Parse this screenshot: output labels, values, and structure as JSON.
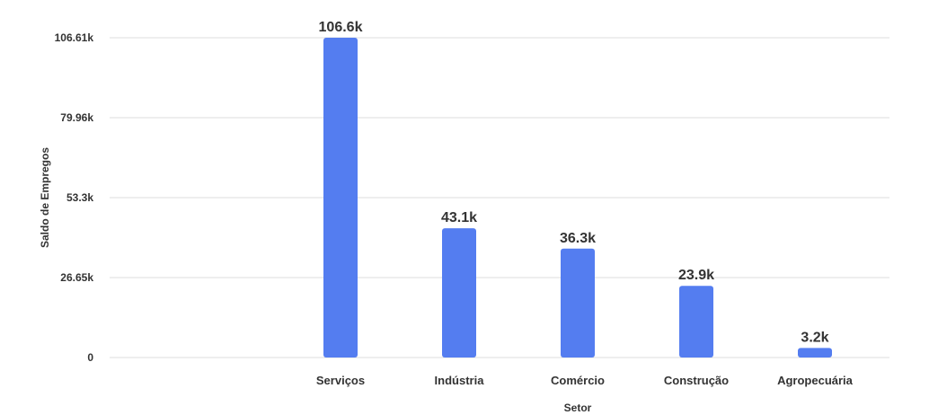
{
  "chart_data": {
    "type": "bar",
    "categories": [
      "Serviços",
      "Indústria",
      "Comércio",
      "Construção",
      "Agropecuária"
    ],
    "values": [
      106.6,
      43.1,
      36.3,
      23.9,
      3.2
    ],
    "value_labels": [
      "106.6k",
      "43.1k",
      "36.3k",
      "23.9k",
      "3.2k"
    ],
    "title": "",
    "xlabel": "Setor",
    "ylabel": "Saldo de Empregos",
    "ylim": [
      0,
      106.61
    ],
    "y_ticks": [
      0,
      26.65,
      53.3,
      79.96,
      106.61
    ],
    "y_tick_labels": [
      "0",
      "26.65k",
      "53.3k",
      "79.96k",
      "106.61k"
    ],
    "grid": true,
    "bar_color": "#547df0"
  }
}
